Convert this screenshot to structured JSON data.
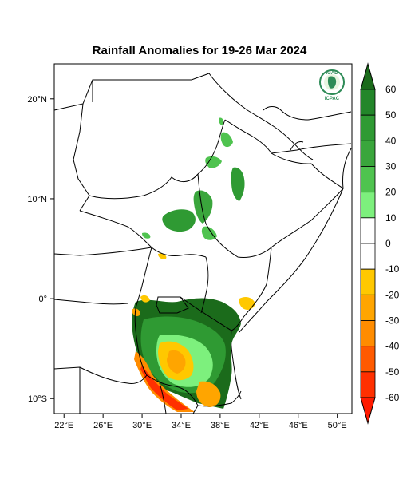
{
  "title": "Rainfall Anomalies for 19-26 Mar 2024",
  "logo": {
    "top_text": "IGAD",
    "bottom_text": "ICPAC"
  },
  "x_axis": {
    "ticks": [
      {
        "lon": 22,
        "label": "22°E"
      },
      {
        "lon": 26,
        "label": "26°E"
      },
      {
        "lon": 30,
        "label": "30°E"
      },
      {
        "lon": 34,
        "label": "34°E"
      },
      {
        "lon": 38,
        "label": "38°E"
      },
      {
        "lon": 42,
        "label": "42°E"
      },
      {
        "lon": 46,
        "label": "46°E"
      },
      {
        "lon": 50,
        "label": "50°E"
      }
    ]
  },
  "y_axis": {
    "ticks": [
      {
        "lat": 20,
        "label": "20°N"
      },
      {
        "lat": 10,
        "label": "10°N"
      },
      {
        "lat": 0,
        "label": "0°"
      },
      {
        "lat": -10,
        "label": "10°S"
      }
    ]
  },
  "extent": {
    "lon_min": 21,
    "lon_max": 51.5,
    "lat_min": -11.5,
    "lat_max": 23.5
  },
  "colorbar": {
    "labels": [
      "60",
      "50",
      "40",
      "30",
      "20",
      "10",
      "0",
      "-10",
      "-20",
      "-30",
      "-40",
      "-50",
      "-60"
    ],
    "bins": [
      {
        "color": "#1b6b1b"
      },
      {
        "color": "#23862a"
      },
      {
        "color": "#2f9a33"
      },
      {
        "color": "#3aa63c"
      },
      {
        "color": "#4fc34f"
      },
      {
        "color": "#7df07d"
      },
      {
        "color": "#ffffff"
      },
      {
        "color": "#ffffff"
      },
      {
        "color": "#ffc800"
      },
      {
        "color": "#ffa500"
      },
      {
        "color": "#ff8c00"
      },
      {
        "color": "#ff5a00"
      },
      {
        "color": "#ff3000"
      },
      {
        "color": "#ff1a00"
      }
    ]
  }
}
